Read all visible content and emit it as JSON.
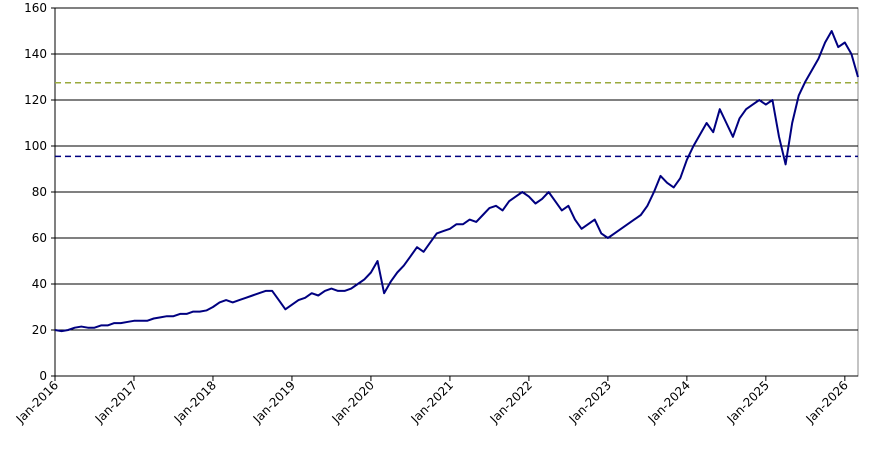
{
  "chart_data": {
    "type": "line",
    "x": [
      "2016-01",
      "2016-02",
      "2016-03",
      "2016-04",
      "2016-05",
      "2016-06",
      "2016-07",
      "2016-08",
      "2016-09",
      "2016-10",
      "2016-11",
      "2016-12",
      "2017-01",
      "2017-02",
      "2017-03",
      "2017-04",
      "2017-05",
      "2017-06",
      "2017-07",
      "2017-08",
      "2017-09",
      "2017-10",
      "2017-11",
      "2017-12",
      "2018-01",
      "2018-02",
      "2018-03",
      "2018-04",
      "2018-05",
      "2018-06",
      "2018-07",
      "2018-08",
      "2018-09",
      "2018-10",
      "2018-11",
      "2018-12",
      "2019-01",
      "2019-02",
      "2019-03",
      "2019-04",
      "2019-05",
      "2019-06",
      "2019-07",
      "2019-08",
      "2019-09",
      "2019-10",
      "2019-11",
      "2019-12",
      "2020-01",
      "2020-02",
      "2020-03",
      "2020-04",
      "2020-05",
      "2020-06",
      "2020-07",
      "2020-08",
      "2020-09",
      "2020-10",
      "2020-11",
      "2020-12",
      "2021-01",
      "2021-02",
      "2021-03",
      "2021-04",
      "2021-05",
      "2021-06",
      "2021-07",
      "2021-08",
      "2021-09",
      "2021-10",
      "2021-11",
      "2021-12",
      "2022-01",
      "2022-02",
      "2022-03",
      "2022-04",
      "2022-05",
      "2022-06",
      "2022-07",
      "2022-08",
      "2022-09",
      "2022-10",
      "2022-11",
      "2022-12",
      "2023-01",
      "2023-02",
      "2023-03",
      "2023-04",
      "2023-05",
      "2023-06",
      "2023-07",
      "2023-08",
      "2023-09",
      "2023-10",
      "2023-11",
      "2023-12",
      "2024-01",
      "2024-02",
      "2024-03",
      "2024-04",
      "2024-05",
      "2024-06",
      "2024-07",
      "2024-08",
      "2024-09",
      "2024-10",
      "2024-11",
      "2024-12",
      "2025-01",
      "2025-02",
      "2025-03",
      "2025-04",
      "2025-05",
      "2025-06",
      "2025-07",
      "2025-08",
      "2025-09",
      "2025-10",
      "2025-11",
      "2025-12",
      "2026-01",
      "2026-02",
      "2026-03"
    ],
    "series": [
      {
        "color": "#000080",
        "values": [
          20,
          19.5,
          20,
          21,
          21.5,
          21,
          21,
          22,
          22,
          23,
          23,
          23.5,
          24,
          24,
          24,
          25,
          25.5,
          26,
          26,
          27,
          27,
          28,
          28,
          28.5,
          30,
          32,
          33,
          32,
          33,
          34,
          35,
          36,
          37,
          37,
          33,
          29,
          31,
          33,
          34,
          36,
          35,
          37,
          38,
          37,
          37,
          38,
          40,
          42,
          45,
          50,
          36,
          41,
          45,
          48,
          52,
          56,
          54,
          58,
          62,
          63,
          64,
          66,
          66,
          68,
          67,
          70,
          73,
          74,
          72,
          76,
          78,
          80,
          78,
          75,
          77,
          80,
          76,
          72,
          74,
          68,
          64,
          66,
          68,
          62,
          60,
          62,
          64,
          66,
          68,
          70,
          74,
          80,
          87,
          84,
          82,
          86,
          94,
          100,
          105,
          110,
          106,
          116,
          110,
          104,
          112,
          116,
          118,
          120,
          118,
          120,
          104,
          92,
          110,
          122,
          128,
          133,
          138,
          145,
          150,
          143,
          145,
          140,
          130
        ]
      }
    ],
    "reference_lines": [
      {
        "value": 127.5,
        "color": "#9aaa3c"
      },
      {
        "value": 95.5,
        "color": "#000080"
      }
    ],
    "xlim": [
      "2016-01",
      "2026-03"
    ],
    "xticks": [
      {
        "value": "2016-01",
        "label": "Jan-2016"
      },
      {
        "value": "2017-01",
        "label": "Jan-2017"
      },
      {
        "value": "2018-01",
        "label": "Jan-2018"
      },
      {
        "value": "2019-01",
        "label": "Jan-2019"
      },
      {
        "value": "2020-01",
        "label": "Jan-2020"
      },
      {
        "value": "2021-01",
        "label": "Jan-2021"
      },
      {
        "value": "2022-01",
        "label": "Jan-2022"
      },
      {
        "value": "2023-01",
        "label": "Jan-2023"
      },
      {
        "value": "2024-01",
        "label": "Jan-2024"
      },
      {
        "value": "2025-01",
        "label": "Jan-2025"
      },
      {
        "value": "2026-01",
        "label": "Jan-2026"
      }
    ],
    "ylim": [
      0,
      160
    ],
    "yticks": [
      0,
      20,
      40,
      60,
      80,
      100,
      120,
      140,
      160
    ],
    "grid": true
  }
}
